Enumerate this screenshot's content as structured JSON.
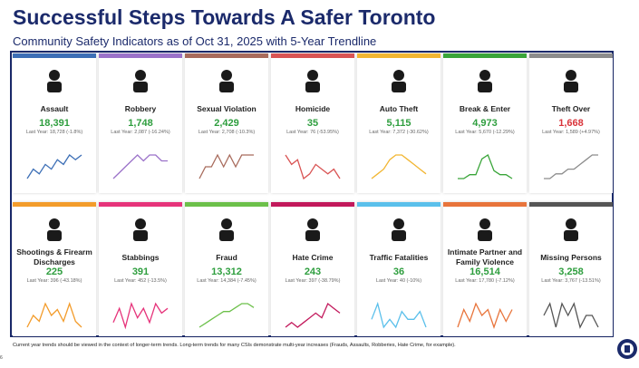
{
  "header": {
    "title": "Successful Steps Towards A Safer Toronto",
    "subtitle": "Community Safety Indicators as of Oct 31, 2025 with 5-Year Trendline"
  },
  "cards": [
    {
      "name": "Assault",
      "value": "18,391",
      "last_year": "Last Year: 18,728 (-1.8%)",
      "color": "#3d6fb6",
      "value_color": "#2e9e3e",
      "trend": [
        3,
        5,
        4,
        6,
        5,
        7,
        6,
        8,
        7,
        8
      ]
    },
    {
      "name": "Robbery",
      "value": "1,748",
      "last_year": "Last Year: 2,087 (-16.24%)",
      "color": "#9b72c9",
      "value_color": "#2e9e3e",
      "trend": [
        3,
        4,
        5,
        6,
        7,
        6,
        7,
        7,
        6,
        6
      ]
    },
    {
      "name": "Sexual Violation",
      "value": "2,429",
      "last_year": "Last Year: 2,708 (-10.3%)",
      "color": "#a86b5c",
      "value_color": "#2e9e3e",
      "trend": [
        4,
        5,
        5,
        6,
        5,
        6,
        5,
        6,
        6,
        6
      ]
    },
    {
      "name": "Homicide",
      "value": "35",
      "last_year": "Last Year: 76 (-53.95%)",
      "color": "#d95454",
      "value_color": "#2e9e3e",
      "trend": [
        7,
        5,
        6,
        2,
        3,
        5,
        4,
        3,
        4,
        2
      ]
    },
    {
      "name": "Auto Theft",
      "value": "5,115",
      "last_year": "Last Year: 7,372 (-30.62%)",
      "color": "#f2b632",
      "value_color": "#2e9e3e",
      "trend": [
        3,
        4,
        5,
        7,
        8,
        8,
        7,
        6,
        5,
        4
      ]
    },
    {
      "name": "Break & Enter",
      "value": "4,973",
      "last_year": "Last Year: 5,670 (-12.29%)",
      "color": "#3aa53a",
      "value_color": "#2e9e3e",
      "trend": [
        3,
        3,
        4,
        4,
        8,
        9,
        5,
        4,
        4,
        3
      ]
    },
    {
      "name": "Theft Over",
      "value": "1,668",
      "last_year": "Last Year: 1,589 (+4.97%)",
      "color": "#8c8c8c",
      "value_color": "#d9343a",
      "trend": [
        3,
        3,
        4,
        4,
        5,
        5,
        6,
        7,
        8,
        8
      ]
    },
    {
      "name": "Shootings & Firearm Discharges",
      "value": "225",
      "last_year": "Last Year: 396 (-43.18%)",
      "color": "#f39c2b",
      "value_color": "#2e9e3e",
      "trend": [
        4,
        6,
        5,
        8,
        6,
        7,
        5,
        8,
        5,
        4
      ]
    },
    {
      "name": "Stabbings",
      "value": "391",
      "last_year": "Last Year: 452 (-13.5%)",
      "color": "#e6337a",
      "value_color": "#2e9e3e",
      "trend": [
        4,
        7,
        3,
        8,
        5,
        7,
        4,
        8,
        6,
        7
      ]
    },
    {
      "name": "Fraud",
      "value": "13,312",
      "last_year": "Last Year: 14,384 (-7.45%)",
      "color": "#6cc04a",
      "value_color": "#2e9e3e",
      "trend": [
        2,
        3,
        4,
        5,
        6,
        6,
        7,
        8,
        8,
        7
      ]
    },
    {
      "name": "Hate Crime",
      "value": "243",
      "last_year": "Last Year: 397 (-38.79%)",
      "color": "#c2185b",
      "value_color": "#2e9e3e",
      "trend": [
        3,
        4,
        3,
        4,
        5,
        6,
        5,
        8,
        7,
        6
      ]
    },
    {
      "name": "Traffic Fatalities",
      "value": "36",
      "last_year": "Last Year: 40 (-10%)",
      "color": "#5bc0eb",
      "value_color": "#2e9e3e",
      "trend": [
        5,
        7,
        4,
        5,
        4,
        6,
        5,
        5,
        6,
        4
      ]
    },
    {
      "name": "Intimate Partner and Family Violence",
      "value": "16,514",
      "last_year": "Last Year: 17,780 (-7.12%)",
      "color": "#e8743b",
      "value_color": "#2e9e3e",
      "trend": [
        4,
        7,
        5,
        8,
        6,
        7,
        4,
        7,
        5,
        7
      ]
    },
    {
      "name": "Missing Persons",
      "value": "3,258",
      "last_year": "Last Year: 3,767 (-13.51%)",
      "color": "#555555",
      "value_color": "#2e9e3e",
      "trend": [
        6,
        7,
        5,
        7,
        6,
        7,
        5,
        6,
        6,
        5
      ]
    }
  ],
  "footnote": "Current year trends should be viewed in the context of longer-term trends. Long-term trends for many CSIs demonstrate multi-year increases (Frauds, Assaults, Robberies, Hate Crime, for example).",
  "page_number": "6"
}
